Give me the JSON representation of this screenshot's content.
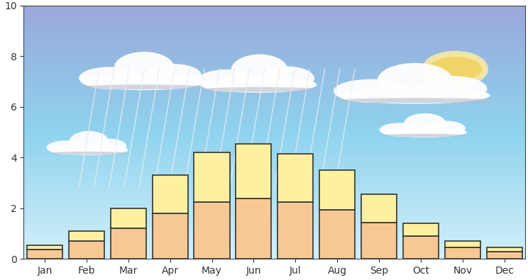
{
  "chart_data": {
    "type": "bar",
    "stacked": true,
    "categories": [
      "Jan",
      "Feb",
      "Mar",
      "Apr",
      "May",
      "Jun",
      "Jul",
      "Aug",
      "Sep",
      "Oct",
      "Nov",
      "Dec"
    ],
    "series": [
      {
        "color": "#f8c894",
        "values": [
          0.38,
          0.7,
          1.2,
          1.8,
          2.25,
          2.4,
          2.25,
          1.95,
          1.45,
          0.9,
          0.45,
          0.3
        ]
      },
      {
        "color": "#fdf0a0",
        "values": [
          0.17,
          0.4,
          0.8,
          1.5,
          1.95,
          2.15,
          1.9,
          1.55,
          1.1,
          0.5,
          0.25,
          0.15
        ]
      }
    ],
    "ylim": [
      0,
      10
    ],
    "yticks": [
      0,
      2,
      4,
      6,
      8,
      10
    ]
  }
}
